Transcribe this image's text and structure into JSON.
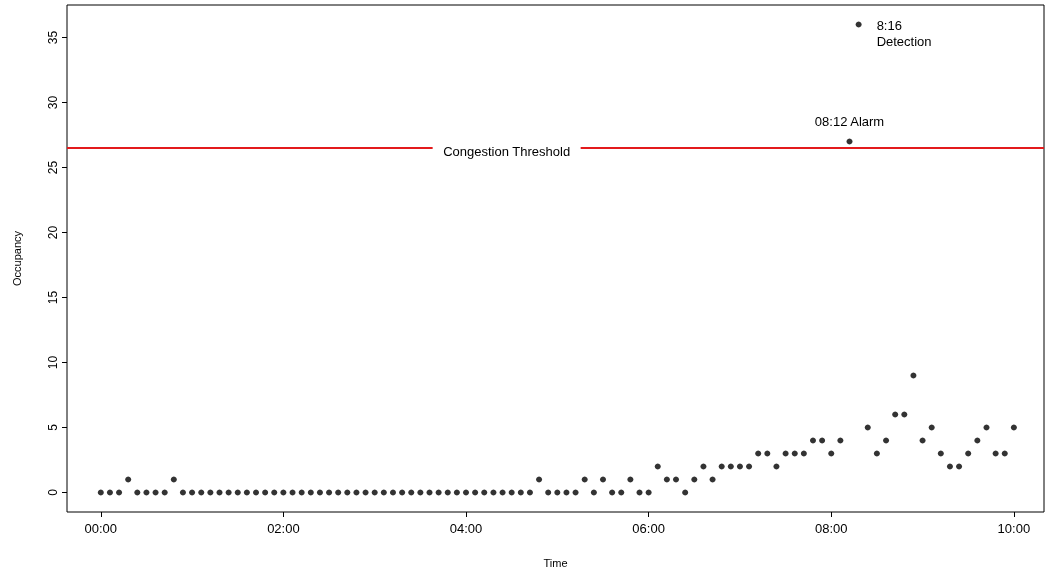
{
  "chart_data": {
    "type": "scatter",
    "xlabel": "Time",
    "ylabel": "Occupancy",
    "x": [
      0,
      0.1,
      0.2,
      0.3,
      0.4,
      0.5,
      0.6,
      0.7,
      0.8,
      0.9,
      1,
      1.1,
      1.2,
      1.3,
      1.4,
      1.5,
      1.6,
      1.7,
      1.8,
      1.9,
      2,
      2.1,
      2.2,
      2.3,
      2.4,
      2.5,
      2.6,
      2.7,
      2.8,
      2.9,
      3,
      3.1,
      3.2,
      3.3,
      3.4,
      3.5,
      3.6,
      3.7,
      3.8,
      3.9,
      4,
      4.1,
      4.2,
      4.3,
      4.4,
      4.5,
      4.6,
      4.7,
      4.8,
      4.9,
      5,
      5.1,
      5.2,
      5.3,
      5.4,
      5.5,
      5.6,
      5.7,
      5.8,
      5.9,
      6,
      6.1,
      6.2,
      6.3,
      6.4,
      6.5,
      6.6,
      6.7,
      6.8,
      6.9,
      7,
      7.1,
      7.2,
      7.3,
      7.4,
      7.5,
      7.6,
      7.7,
      7.8,
      7.9,
      8,
      8.1,
      8.2,
      8.3,
      8.4,
      8.5,
      8.6,
      8.7,
      8.8,
      8.9,
      9,
      9.1,
      9.2,
      9.3,
      9.4,
      9.5,
      9.6,
      9.7,
      9.8,
      9.9,
      10
    ],
    "series": [
      {
        "color": "#000000",
        "values": [
          0,
          0,
          0,
          1,
          0,
          0,
          0,
          0,
          1,
          0,
          0,
          0,
          0,
          0,
          0,
          0,
          0,
          0,
          0,
          0,
          0,
          0,
          0,
          0,
          0,
          0,
          0,
          0,
          0,
          0,
          0,
          0,
          0,
          0,
          0,
          0,
          0,
          0,
          0,
          0,
          0,
          0,
          0,
          0,
          0,
          0,
          0,
          0,
          1,
          0,
          0,
          0,
          0,
          1,
          0,
          1,
          0,
          0,
          1,
          0,
          0,
          2,
          1,
          1,
          0,
          1,
          2,
          1,
          2,
          2,
          2,
          2,
          3,
          3,
          2,
          3,
          3,
          3,
          4,
          4,
          3,
          4,
          27,
          36,
          5,
          3,
          4,
          6,
          6,
          9,
          4,
          5,
          3,
          2,
          2,
          3,
          4,
          5,
          3,
          3,
          5
        ]
      }
    ],
    "xlim": [
      -0.37,
      10.33
    ],
    "ylim": [
      -1.5,
      37.5
    ],
    "xticks": [
      {
        "value": 0,
        "label": "00:00"
      },
      {
        "value": 2,
        "label": "02:00"
      },
      {
        "value": 4,
        "label": "04:00"
      },
      {
        "value": 6,
        "label": "06:00"
      },
      {
        "value": 8,
        "label": "08:00"
      },
      {
        "value": 10,
        "label": "10:00"
      }
    ],
    "yticks": [
      0,
      5,
      10,
      15,
      20,
      25,
      30,
      35
    ],
    "ref_lines": [
      {
        "axis": "y",
        "value": 26.5,
        "label": "Congestion Threshold",
        "color": "#e31a1c"
      }
    ],
    "annotations": [
      {
        "text": "08:12 Alarm",
        "x": 8.2,
        "y": 27
      },
      {
        "text": "8:16\nDetection",
        "x": 8.3,
        "y": 36
      }
    ],
    "marker": "circle",
    "grid": false
  }
}
